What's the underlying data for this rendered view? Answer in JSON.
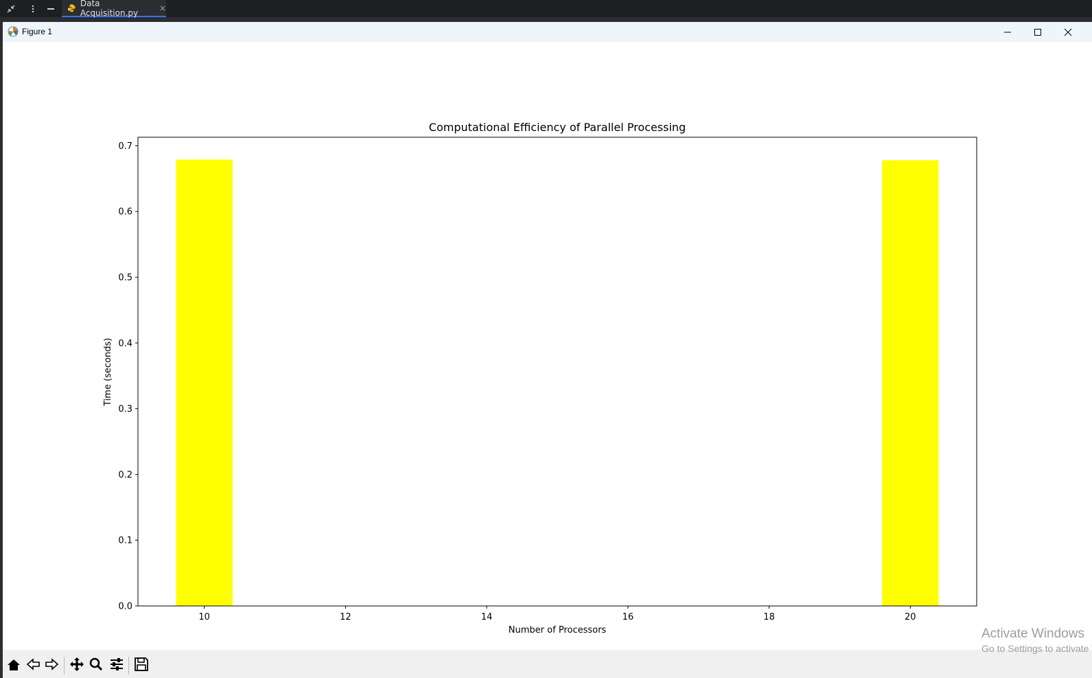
{
  "ide": {
    "tab_label": "Data Acquisition.py",
    "tab_close": "×"
  },
  "window": {
    "title": "Figure 1"
  },
  "chart_data": {
    "type": "bar",
    "title": "Computational Efficiency of Parallel Processing",
    "xlabel": "Number of Processors",
    "ylabel": "Time (seconds)",
    "x": [
      10,
      20
    ],
    "values": [
      0.679,
      0.678
    ],
    "bar_width": 0.8,
    "bar_color": "#ffff00",
    "xlim": [
      9.06,
      20.94
    ],
    "ylim": [
      0,
      0.713
    ],
    "xticks": [
      10,
      12,
      14,
      16,
      18,
      20
    ],
    "yticks": [
      "0.0",
      "0.1",
      "0.2",
      "0.3",
      "0.4",
      "0.5",
      "0.6",
      "0.7"
    ],
    "grid": false,
    "legend": "none"
  },
  "watermark": {
    "line1": "Activate Windows",
    "line2": "Go to Settings to activate Windows."
  }
}
